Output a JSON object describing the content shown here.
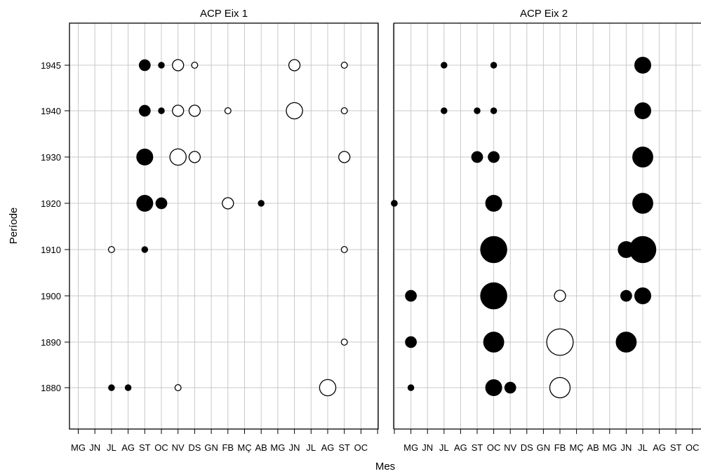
{
  "chart_data": {
    "type": "scatter",
    "xlabel": "Mes",
    "ylabel": "Període",
    "y_categories": [
      "1880",
      "1890",
      "1900",
      "1910",
      "1920",
      "1930",
      "1940",
      "1945"
    ],
    "x_categories_left": [
      "MG",
      "JN",
      "JL",
      "AG",
      "ST",
      "OC",
      "NV",
      "DS",
      "GN",
      "FB",
      "MÇ",
      "AB",
      "MG",
      "JN",
      "JL",
      "AG",
      "ST",
      "OC"
    ],
    "x_categories_right": [
      "MG",
      "JN",
      "JL",
      "AG",
      "ST",
      "OC",
      "NV",
      "DS",
      "GN",
      "FB",
      "MÇ",
      "AB",
      "MG",
      "JN",
      "JL",
      "AG",
      "ST",
      "OC"
    ],
    "grid": true,
    "panels": [
      {
        "title": "ACP Eix 1",
        "points": [
          {
            "x": 4,
            "y": "1945",
            "size": 0.55,
            "sign": "positive"
          },
          {
            "x": 5,
            "y": "1945",
            "size": 0.3,
            "sign": "positive"
          },
          {
            "x": 6,
            "y": "1945",
            "size": 0.55,
            "sign": "negative"
          },
          {
            "x": 7,
            "y": "1945",
            "size": 0.3,
            "sign": "negative"
          },
          {
            "x": 13,
            "y": "1945",
            "size": 0.55,
            "sign": "negative"
          },
          {
            "x": 16,
            "y": "1945",
            "size": 0.3,
            "sign": "negative"
          },
          {
            "x": 4,
            "y": "1940",
            "size": 0.55,
            "sign": "positive"
          },
          {
            "x": 5,
            "y": "1940",
            "size": 0.3,
            "sign": "positive"
          },
          {
            "x": 6,
            "y": "1940",
            "size": 0.55,
            "sign": "negative"
          },
          {
            "x": 7,
            "y": "1940",
            "size": 0.55,
            "sign": "negative"
          },
          {
            "x": 9,
            "y": "1940",
            "size": 0.3,
            "sign": "negative"
          },
          {
            "x": 13,
            "y": "1940",
            "size": 0.8,
            "sign": "negative"
          },
          {
            "x": 16,
            "y": "1940",
            "size": 0.3,
            "sign": "negative"
          },
          {
            "x": 4,
            "y": "1930",
            "size": 0.8,
            "sign": "positive"
          },
          {
            "x": 6,
            "y": "1930",
            "size": 0.8,
            "sign": "negative"
          },
          {
            "x": 7,
            "y": "1930",
            "size": 0.55,
            "sign": "negative"
          },
          {
            "x": 16,
            "y": "1930",
            "size": 0.55,
            "sign": "negative"
          },
          {
            "x": 4,
            "y": "1920",
            "size": 0.8,
            "sign": "positive"
          },
          {
            "x": 5,
            "y": "1920",
            "size": 0.55,
            "sign": "positive"
          },
          {
            "x": 9,
            "y": "1920",
            "size": 0.55,
            "sign": "negative"
          },
          {
            "x": 11,
            "y": "1920",
            "size": 0.3,
            "sign": "positive"
          },
          {
            "x": 19,
            "y": "1920",
            "size": 0.3,
            "sign": "positive"
          },
          {
            "x": 2,
            "y": "1910",
            "size": 0.3,
            "sign": "negative"
          },
          {
            "x": 4,
            "y": "1910",
            "size": 0.3,
            "sign": "positive"
          },
          {
            "x": 16,
            "y": "1910",
            "size": 0.3,
            "sign": "negative"
          },
          {
            "x": 16,
            "y": "1890",
            "size": 0.3,
            "sign": "negative"
          },
          {
            "x": 2,
            "y": "1880",
            "size": 0.3,
            "sign": "positive"
          },
          {
            "x": 3,
            "y": "1880",
            "size": 0.3,
            "sign": "positive"
          },
          {
            "x": 6,
            "y": "1880",
            "size": 0.3,
            "sign": "negative"
          },
          {
            "x": 15,
            "y": "1880",
            "size": 0.8,
            "sign": "negative"
          }
        ]
      },
      {
        "title": "ACP Eix 2",
        "points": [
          {
            "x": 0,
            "y": "1920",
            "size": 0.3,
            "sign": "positive"
          },
          {
            "x": 3,
            "y": "1945",
            "size": 0.3,
            "sign": "positive"
          },
          {
            "x": 6,
            "y": "1945",
            "size": 0.3,
            "sign": "positive"
          },
          {
            "x": 15,
            "y": "1945",
            "size": 0.8,
            "sign": "positive"
          },
          {
            "x": 3,
            "y": "1940",
            "size": 0.3,
            "sign": "positive"
          },
          {
            "x": 5,
            "y": "1940",
            "size": 0.3,
            "sign": "positive"
          },
          {
            "x": 6,
            "y": "1940",
            "size": 0.3,
            "sign": "positive"
          },
          {
            "x": 15,
            "y": "1940",
            "size": 0.8,
            "sign": "positive"
          },
          {
            "x": 5,
            "y": "1930",
            "size": 0.55,
            "sign": "positive"
          },
          {
            "x": 6,
            "y": "1930",
            "size": 0.55,
            "sign": "positive"
          },
          {
            "x": 15,
            "y": "1930",
            "size": 1.0,
            "sign": "positive"
          },
          {
            "x": 6,
            "y": "1920",
            "size": 0.8,
            "sign": "positive"
          },
          {
            "x": 15,
            "y": "1920",
            "size": 1.0,
            "sign": "positive"
          },
          {
            "x": 6,
            "y": "1910",
            "size": 1.3,
            "sign": "positive"
          },
          {
            "x": 14,
            "y": "1910",
            "size": 0.8,
            "sign": "positive"
          },
          {
            "x": 15,
            "y": "1910",
            "size": 1.3,
            "sign": "positive"
          },
          {
            "x": 1,
            "y": "1900",
            "size": 0.55,
            "sign": "positive"
          },
          {
            "x": 6,
            "y": "1900",
            "size": 1.3,
            "sign": "positive"
          },
          {
            "x": 10,
            "y": "1900",
            "size": 0.55,
            "sign": "negative"
          },
          {
            "x": 14,
            "y": "1900",
            "size": 0.55,
            "sign": "positive"
          },
          {
            "x": 15,
            "y": "1900",
            "size": 0.8,
            "sign": "positive"
          },
          {
            "x": 1,
            "y": "1890",
            "size": 0.55,
            "sign": "positive"
          },
          {
            "x": 6,
            "y": "1890",
            "size": 1.0,
            "sign": "positive"
          },
          {
            "x": 10,
            "y": "1890",
            "size": 1.3,
            "sign": "negative"
          },
          {
            "x": 14,
            "y": "1890",
            "size": 1.0,
            "sign": "positive"
          },
          {
            "x": 1,
            "y": "1880",
            "size": 0.3,
            "sign": "positive"
          },
          {
            "x": 6,
            "y": "1880",
            "size": 0.8,
            "sign": "positive"
          },
          {
            "x": 7,
            "y": "1880",
            "size": 0.55,
            "sign": "positive"
          },
          {
            "x": 10,
            "y": "1880",
            "size": 1.0,
            "sign": "negative"
          }
        ]
      }
    ]
  }
}
